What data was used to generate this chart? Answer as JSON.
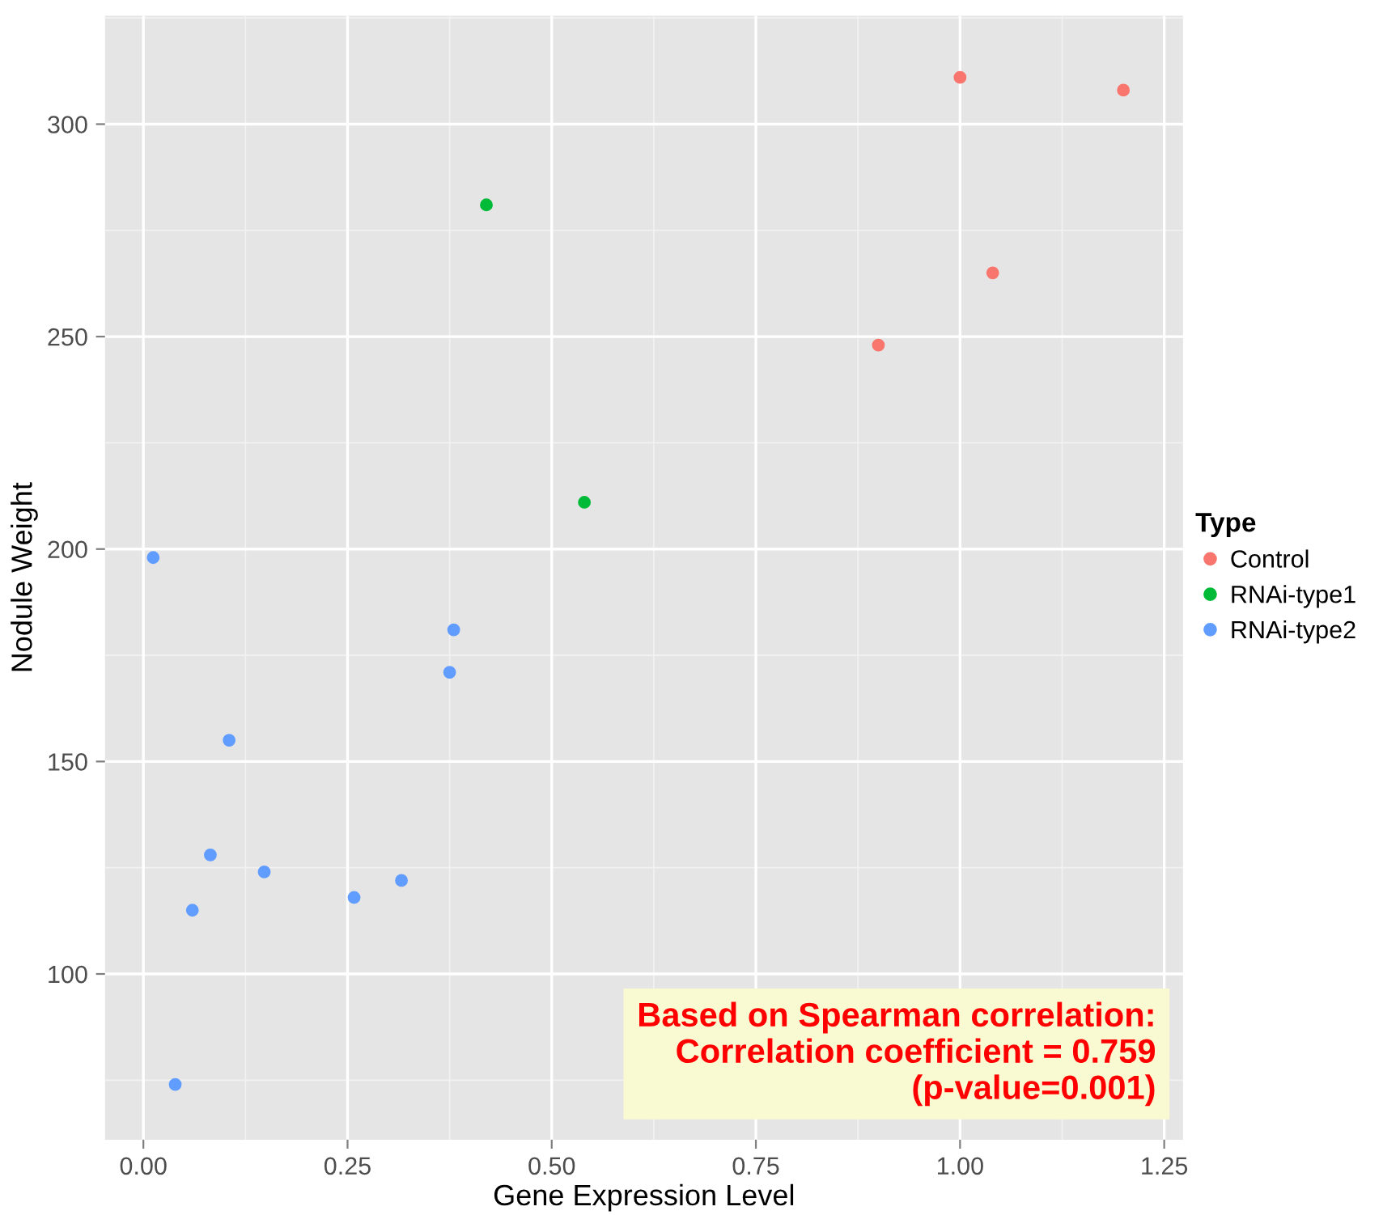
{
  "chart_data": {
    "type": "scatter",
    "xlabel": "Gene Expression Level",
    "ylabel": "Nodule Weight",
    "legend_title": "Type",
    "xlim": [
      -0.047,
      1.273
    ],
    "ylim": [
      61,
      325.5
    ],
    "xticks": [
      {
        "value": 0,
        "label": "0.00"
      },
      {
        "value": 0.25,
        "label": "0.25"
      },
      {
        "value": 0.5,
        "label": "0.50"
      },
      {
        "value": 0.75,
        "label": "0.75"
      },
      {
        "value": 1,
        "label": "1.00"
      },
      {
        "value": 1.25,
        "label": "1.25"
      }
    ],
    "yticks": [
      100,
      150,
      200,
      250,
      300
    ],
    "grid": true,
    "legend": "right",
    "marker": "circle",
    "series": [
      {
        "name": "Control",
        "color": "#f8766d",
        "x": [
          1.0,
          1.2,
          1.04,
          0.9
        ],
        "values": [
          311,
          308,
          265,
          248
        ]
      },
      {
        "name": "RNAi-type1",
        "color": "#00ba38",
        "x": [
          0.42,
          0.54
        ],
        "values": [
          281,
          211
        ]
      },
      {
        "name": "RNAi-type2",
        "color": "#619cff",
        "x": [
          0.012,
          0.38,
          0.375,
          0.105,
          0.082,
          0.148,
          0.06,
          0.258,
          0.316,
          0.039
        ],
        "values": [
          198,
          181,
          171,
          155,
          128,
          124,
          115,
          118,
          122,
          74
        ]
      }
    ],
    "annotations": [
      "Based on Spearman correlation:\nCorrelation coefficient = 0.759\n(p-value=0.001)"
    ]
  }
}
